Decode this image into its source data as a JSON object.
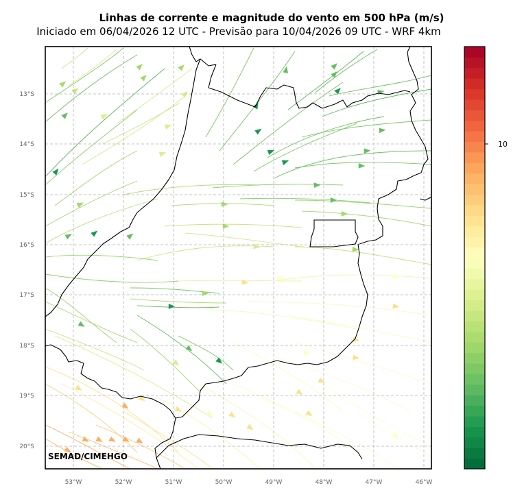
{
  "title": "Linhas de corrente e magnitude do vento em 500 hPa (m/s)",
  "subtitle": "Iniciado em 06/04/2026 12 UTC - Previsão para 10/04/2026 09 UTC - WRF 4km",
  "credit": "SEMAD/CIMEHGO",
  "map": {
    "lon_labels": [
      "53°W",
      "52°W",
      "51°W",
      "50°W",
      "49°W",
      "48°W",
      "47°W",
      "46°W"
    ],
    "lat_labels": [
      "13°S",
      "14°S",
      "15°S",
      "16°S",
      "17°S",
      "18°S",
      "19°S",
      "20°S"
    ],
    "grid": true,
    "colormap": [
      "#006837",
      "#1a9850",
      "#66bd63",
      "#a6d96a",
      "#d9ef8b",
      "#ffffbf",
      "#fee08b",
      "#fdae61",
      "#f46d43",
      "#d73027",
      "#a50026"
    ]
  },
  "colorbar": {
    "tick_label": "10"
  }
}
